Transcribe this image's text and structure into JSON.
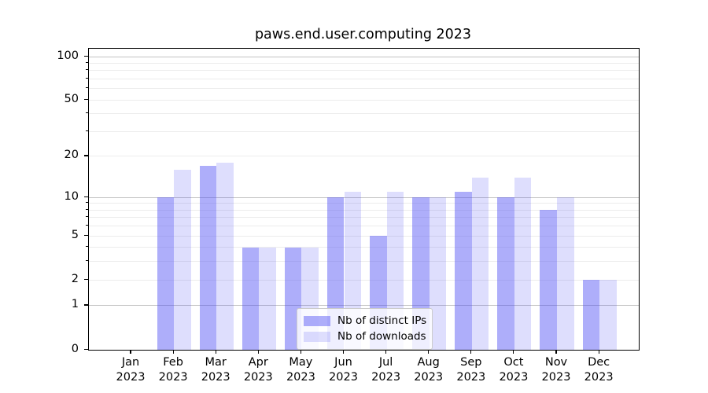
{
  "figure": {
    "title": "paws.end.user.computing 2023"
  },
  "chart_data": {
    "type": "bar",
    "title": "paws.end.user.computing 2023",
    "categories": [
      "Jan 2023",
      "Feb 2023",
      "Mar 2023",
      "Apr 2023",
      "May 2023",
      "Jun 2023",
      "Jul 2023",
      "Aug 2023",
      "Sep 2023",
      "Oct 2023",
      "Nov 2023",
      "Dec 2023"
    ],
    "x_tick_lines": [
      [
        "Jan",
        "2023"
      ],
      [
        "Feb",
        "2023"
      ],
      [
        "Mar",
        "2023"
      ],
      [
        "Apr",
        "2023"
      ],
      [
        "May",
        "2023"
      ],
      [
        "Jun",
        "2023"
      ],
      [
        "Jul",
        "2023"
      ],
      [
        "Aug",
        "2023"
      ],
      [
        "Sep",
        "2023"
      ],
      [
        "Oct",
        "2023"
      ],
      [
        "Nov",
        "2023"
      ],
      [
        "Dec",
        "2023"
      ]
    ],
    "series": [
      {
        "name": "Nb of distinct IPs",
        "values": [
          0,
          10,
          17,
          4,
          4,
          10,
          5,
          10,
          11,
          10,
          8,
          2
        ]
      },
      {
        "name": "Nb of downloads",
        "values": [
          0,
          16,
          18,
          4,
          4,
          11,
          11,
          10,
          14,
          14,
          10,
          2
        ]
      }
    ],
    "yscale": "log1p (pixel position proportional to log10(1+v); linear-looking 0-1 segment)",
    "ylim": [
      0,
      113
    ],
    "y_tick_values": [
      0,
      1,
      2,
      5,
      10,
      20,
      50,
      100
    ],
    "y_tick_labels": [
      "0",
      "1",
      "2",
      "5",
      "10",
      "20",
      "50",
      "100"
    ],
    "y_major_gridlines": [
      1,
      10,
      100
    ],
    "y_minor_gridlines": [
      2,
      3,
      4,
      5,
      6,
      7,
      8,
      9,
      20,
      30,
      40,
      50,
      60,
      70,
      80,
      90
    ],
    "grid": true,
    "legend_position": "lower center"
  },
  "legend": {
    "items": [
      {
        "label": "Nb of distinct IPs",
        "series_key": "ips"
      },
      {
        "label": "Nb of downloads",
        "series_key": "downloads"
      }
    ]
  },
  "colors": {
    "bar_ips": "rgba(79,79,245,0.46)",
    "bar_downloads": "rgba(79,79,245,0.19)",
    "grid_major": "#c3c3c3",
    "grid_minor": "#ececec",
    "spine": "#000000",
    "text": "#000000",
    "legend_border": "#cccccc",
    "legend_bg": "rgba(255,255,255,0.8)"
  }
}
